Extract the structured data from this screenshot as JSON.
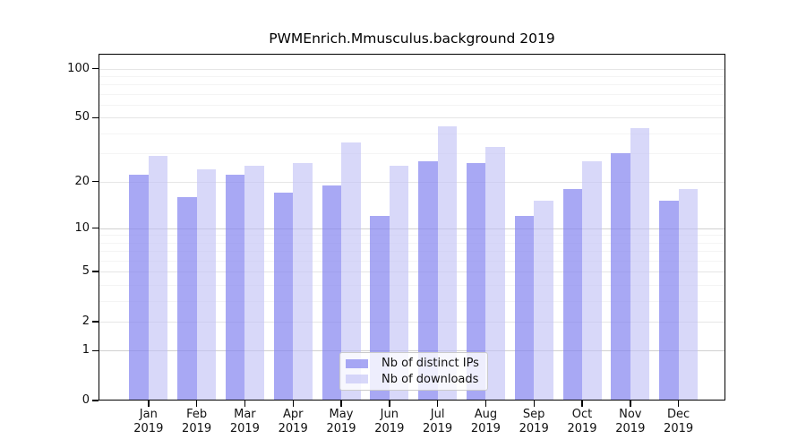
{
  "figure": {
    "title": "PWMEnrich.Mmusculus.background 2019"
  },
  "legend": {
    "items": [
      {
        "label": "Nb of distinct IPs"
      },
      {
        "label": "Nb of downloads"
      }
    ]
  },
  "chart_data": {
    "type": "bar",
    "title": "PWMEnrich.Mmusculus.background 2019",
    "categories": [
      "Jan 2019",
      "Feb 2019",
      "Mar 2019",
      "Apr 2019",
      "May 2019",
      "Jun 2019",
      "Jul 2019",
      "Aug 2019",
      "Sep 2019",
      "Oct 2019",
      "Nov 2019",
      "Dec 2019"
    ],
    "series": [
      {
        "name": "Nb of distinct IPs",
        "color_rgba": "rgba(131,131,240,0.70)",
        "color_hex": "#a8a8f4",
        "values": [
          22,
          16,
          22,
          17,
          19,
          12,
          27,
          26,
          12,
          18,
          30,
          15
        ]
      },
      {
        "name": "Nb of downloads",
        "color_rgba": "rgba(192,192,245,0.62)",
        "color_hex": "#d8d8f9",
        "values": [
          29,
          24,
          25,
          26,
          35,
          25,
          44,
          33,
          15,
          27,
          43,
          18
        ]
      }
    ],
    "xlabel": "",
    "ylabel": "",
    "y_scale": "log1p",
    "y_ticks": [
      0,
      1,
      2,
      5,
      10,
      20,
      50,
      100
    ],
    "y_minor_ticks": [
      3,
      4,
      6,
      7,
      8,
      9,
      30,
      40,
      60,
      70,
      80,
      90
    ],
    "ylim": [
      0,
      123
    ],
    "grid": true,
    "legend_position": "bottom-center"
  },
  "colors": {
    "background": "#ffffff",
    "axis": "#000000",
    "grid_decade": "#d0d0d0",
    "grid_major": "#e6e6e6",
    "grid_minor": "#f4f4f4",
    "text": "#111111"
  }
}
